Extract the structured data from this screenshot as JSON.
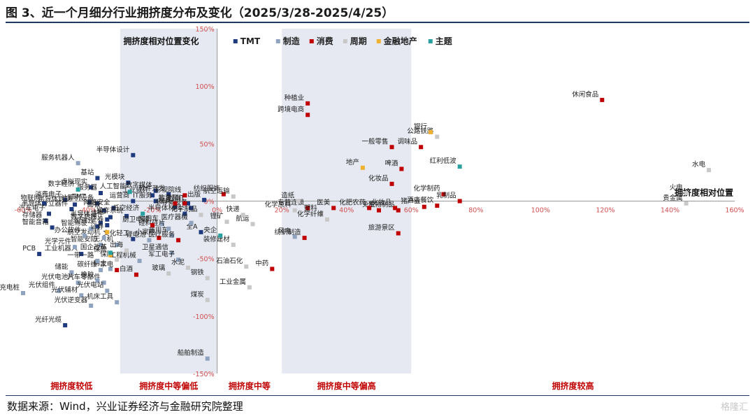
{
  "header": {
    "title": "图 3、近一个月细分行业拥挤度分布及变化（2025/3/28-2025/4/25）"
  },
  "footer": {
    "source": "数据来源：Wind，兴业证券经济与金融研究院整理",
    "watermark": "格隆汇"
  },
  "chart_data": {
    "type": "scatter",
    "title": "拥挤度相对位置变化",
    "xlabel": "拥挤度相对位置",
    "ylabel": "",
    "xlim": [
      -60,
      160
    ],
    "ylim": [
      -150,
      150
    ],
    "x_ticks": [
      "-60%",
      "-40%",
      "-20%",
      "0%",
      "20%",
      "40%",
      "60%",
      "80%",
      "100%",
      "120%",
      "140%",
      "160%"
    ],
    "y_ticks": [
      "150%",
      "100%",
      "50%",
      "0%",
      "-50%",
      "-100%",
      "-150%"
    ],
    "zones": [
      "拥挤度较低",
      "拥挤度中等偏低",
      "拥挤度中等",
      "拥挤度中等偏高",
      "拥挤度较高"
    ],
    "grid": false,
    "legend_position": "top",
    "series": [
      {
        "name": "TMT",
        "color": "#1f3a7d",
        "points": [
          {
            "label": "半导体设计",
            "x": -26,
            "y": 40
          },
          {
            "label": "光模块",
            "x": -27.5,
            "y": 16
          },
          {
            "label": "数字媒体",
            "x": -19,
            "y": 9
          },
          {
            "label": "工业软件",
            "x": -20,
            "y": 5
          },
          {
            "label": "软件开发",
            "x": -15,
            "y": 6
          },
          {
            "label": "运营商",
            "x": -26,
            "y": 0
          },
          {
            "label": "IT服务",
            "x": -19,
            "y": 0
          },
          {
            "label": "金融IT",
            "x": -9,
            "y": -2
          },
          {
            "label": "出版",
            "x": -4,
            "y": 1
          },
          {
            "label": "半导体设备",
            "x": -8,
            "y": -6
          },
          {
            "label": "家具",
            "x": -13,
            "y": -5
          },
          {
            "label": "半导体材料",
            "x": -10,
            "y": -11
          },
          {
            "label": "基站",
            "x": -37,
            "y": 20
          },
          {
            "label": "虚拟现实",
            "x": -39,
            "y": 12
          },
          {
            "label": "服务器",
            "x": -36,
            "y": 7
          },
          {
            "label": "消费电子",
            "x": -47,
            "y": 1
          },
          {
            "label": "TMT",
            "x": -39.5,
            "y": -1
          },
          {
            "label": "半导体封测",
            "x": -44,
            "y": -3
          },
          {
            "label": "半导体分立器件",
            "x": -45,
            "y": -7
          },
          {
            "label": "计算机设备",
            "x": -37,
            "y": -2
          },
          {
            "label": "面板",
            "x": -35,
            "y": -8
          },
          {
            "label": "网络安全",
            "x": -32,
            "y": -6
          },
          {
            "label": "操作系统",
            "x": -28,
            "y": -13
          },
          {
            "label": "半导体器件",
            "x": -34,
            "y": -16
          },
          {
            "label": "LED",
            "x": -33,
            "y": -14
          },
          {
            "label": "国资云",
            "x": -37,
            "y": -22
          },
          {
            "label": "数字货币",
            "x": -36,
            "y": -19
          },
          {
            "label": "证券",
            "x": -34,
            "y": -21
          },
          {
            "label": "物联网",
            "x": -53.5,
            "y": -2
          },
          {
            "label": "汽车电子",
            "x": -52,
            "y": -11
          },
          {
            "label": "存储器",
            "x": -53,
            "y": -17
          },
          {
            "label": "智能音箱",
            "x": -51,
            "y": -23
          },
          {
            "label": "PCB",
            "x": -55,
            "y": -46
          },
          {
            "label": "光纤光缆",
            "x": -47,
            "y": -108
          },
          {
            "label": "文化轻工",
            "x": -26,
            "y": -33
          },
          {
            "label": "全A",
            "x": -5,
            "y": -27
          },
          {
            "label": "工业机器人",
            "x": -42,
            "y": -46
          }
        ]
      },
      {
        "name": "制造",
        "color": "#8fa3bf",
        "points": [
          {
            "label": "服务机器人",
            "x": -43,
            "y": 33
          },
          {
            "label": "机床工具",
            "x": -31,
            "y": -88
          },
          {
            "label": "船舶制造",
            "x": -3,
            "y": -137
          },
          {
            "label": "汽车零部件",
            "x": -35,
            "y": -71
          },
          {
            "label": "卫星通信",
            "x": -14,
            "y": -45
          },
          {
            "label": "军工电子",
            "x": -12,
            "y": -51
          },
          {
            "label": "乘用车",
            "x": -17,
            "y": -20
          },
          {
            "label": "商用车",
            "x": -14,
            "y": -30
          },
          {
            "label": "锂电池",
            "x": -21,
            "y": -34
          },
          {
            "label": "工程机械",
            "x": -24,
            "y": -52
          },
          {
            "label": "硅料硅片",
            "x": -15,
            "y": -24
          },
          {
            "label": "医疗器械",
            "x": -8,
            "y": -19
          },
          {
            "label": "光学元件",
            "x": -44,
            "y": -40
          },
          {
            "label": "储能",
            "x": -45,
            "y": -62
          },
          {
            "label": "橡胶",
            "x": -37,
            "y": -69
          },
          {
            "label": "碳纤维",
            "x": -36,
            "y": -60
          },
          {
            "label": "稀土",
            "x": -33,
            "y": -59
          },
          {
            "label": "光伏电池片",
            "x": -43,
            "y": -71
          },
          {
            "label": "光伏组件",
            "x": -49,
            "y": -78
          },
          {
            "label": "光伏辅材",
            "x": -42,
            "y": -82
          },
          {
            "label": "光伏电站",
            "x": -34,
            "y": -78
          },
          {
            "label": "光伏逆变器",
            "x": -39,
            "y": -91
          },
          {
            "label": "充电桩",
            "x": -60,
            "y": -80
          },
          {
            "label": "风电",
            "x": 24,
            "y": -31
          },
          {
            "label": "无人机",
            "x": -31,
            "y": -38
          },
          {
            "label": "航空发动机",
            "x": -35,
            "y": -32
          },
          {
            "label": "智能安防",
            "x": -36,
            "y": -38
          },
          {
            "label": "办公软件",
            "x": -41,
            "y": -30
          },
          {
            "label": "智能驾驶",
            "x": -39,
            "y": -24
          },
          {
            "label": "一带一路",
            "x": -37,
            "y": -52
          }
        ]
      },
      {
        "name": "消费",
        "color": "#c00000",
        "points": [
          {
            "label": "休闲食品",
            "x": 119,
            "y": 88
          },
          {
            "label": "种植业",
            "x": 28,
            "y": 85
          },
          {
            "label": "跨境电商",
            "x": 28,
            "y": 75
          },
          {
            "label": "一般零售",
            "x": 54,
            "y": 47
          },
          {
            "label": "调味品",
            "x": 63,
            "y": 47
          },
          {
            "label": "啤酒",
            "x": 57,
            "y": 28
          },
          {
            "label": "化妆品",
            "x": 54,
            "y": 15
          },
          {
            "label": "化学制药",
            "x": 70,
            "y": 6
          },
          {
            "label": "乳制品",
            "x": 75,
            "y": 0
          },
          {
            "label": "酒店餐饮",
            "x": 68,
            "y": -4
          },
          {
            "label": "猪产业",
            "x": 64,
            "y": -5
          },
          {
            "label": "生物制品",
            "x": 56,
            "y": -8
          },
          {
            "label": "旅游景区",
            "x": 56,
            "y": -28
          },
          {
            "label": "中药",
            "x": 17,
            "y": -59
          },
          {
            "label": "纺织服饰",
            "x": 2,
            "y": 6
          },
          {
            "label": "纺织制造",
            "x": 27,
            "y": -32
          },
          {
            "label": "白酒",
            "x": -25,
            "y": -64
          },
          {
            "label": "厨卫电器",
            "x": -20,
            "y": -21
          },
          {
            "label": "小家电",
            "x": -18,
            "y": -32
          },
          {
            "label": "影视院线",
            "x": -10,
            "y": 5
          },
          {
            "label": "时尚",
            "x": -10,
            "y": -2
          },
          {
            "label": "教育",
            "x": -13,
            "y": -2
          },
          {
            "label": "医疗服务",
            "x": -12,
            "y": -34
          },
          {
            "label": "专营连锁",
            "x": 28,
            "y": -6
          },
          {
            "label": "化妆品2",
            "x": 55,
            "y": -6
          },
          {
            "label": "免税",
            "x": 50,
            "y": -8
          },
          {
            "label": "化肥农药",
            "x": 47,
            "y": -6
          },
          {
            "label": "医美",
            "x": 36,
            "y": -6
          },
          {
            "label": "家电",
            "x": -31,
            "y": -60
          }
        ]
      },
      {
        "name": "周期",
        "color": "#c8c8c8",
        "points": [
          {
            "label": "水电",
            "x": 152,
            "y": 27
          },
          {
            "label": "公路铁路",
            "x": 68,
            "y": 56
          },
          {
            "label": "火电",
            "x": 145,
            "y": 7
          },
          {
            "label": "贵金属",
            "x": 145,
            "y": -2
          },
          {
            "label": "造纸",
            "x": 25,
            "y": 0
          },
          {
            "label": "化学原料",
            "x": 24,
            "y": -8
          },
          {
            "label": "塑料",
            "x": 32,
            "y": -11
          },
          {
            "label": "化学纤维",
            "x": 34,
            "y": -16
          },
          {
            "label": "航运",
            "x": 11,
            "y": -20
          },
          {
            "label": "快递",
            "x": 8,
            "y": -12
          },
          {
            "label": "锂矿",
            "x": 3,
            "y": -18
          },
          {
            "label": "装修建材",
            "x": 5,
            "y": -38
          },
          {
            "label": "石油石化",
            "x": 9,
            "y": -57
          },
          {
            "label": "工业金属",
            "x": 10,
            "y": -75
          },
          {
            "label": "钢铁",
            "x": -3,
            "y": -67
          },
          {
            "label": "煤炭",
            "x": -3,
            "y": -86
          },
          {
            "label": "水泥",
            "x": -9,
            "y": -58
          },
          {
            "label": "玻璃",
            "x": -15,
            "y": -63
          },
          {
            "label": "化学制品",
            "x": -5,
            "y": -12
          },
          {
            "label": "航空运输",
            "x": 5,
            "y": 4
          },
          {
            "label": "出海",
            "x": -28,
            "y": -43
          },
          {
            "label": "保险",
            "x": -31,
            "y": -51
          }
        ]
      },
      {
        "name": "金融地产",
        "color": "#f0b030",
        "points": [
          {
            "label": "银行",
            "x": 66,
            "y": 60
          },
          {
            "label": "地产",
            "x": 45,
            "y": 29
          },
          {
            "label": "证券2",
            "x": -34,
            "y": -27
          },
          {
            "label": "保险2",
            "x": -33,
            "y": -47
          }
        ]
      },
      {
        "name": "主题",
        "color": "#2aa0a0",
        "points": [
          {
            "label": "数字经济",
            "x": -43,
            "y": 10
          },
          {
            "label": "红利低波",
            "x": 75,
            "y": 30
          },
          {
            "label": "人工智能",
            "x": -27,
            "y": 8
          },
          {
            "label": "低空经济",
            "x": -23,
            "y": -11
          },
          {
            "label": "央企",
            "x": 1,
            "y": -30
          },
          {
            "label": "国企改革",
            "x": -33,
            "y": -45
          }
        ]
      }
    ]
  }
}
